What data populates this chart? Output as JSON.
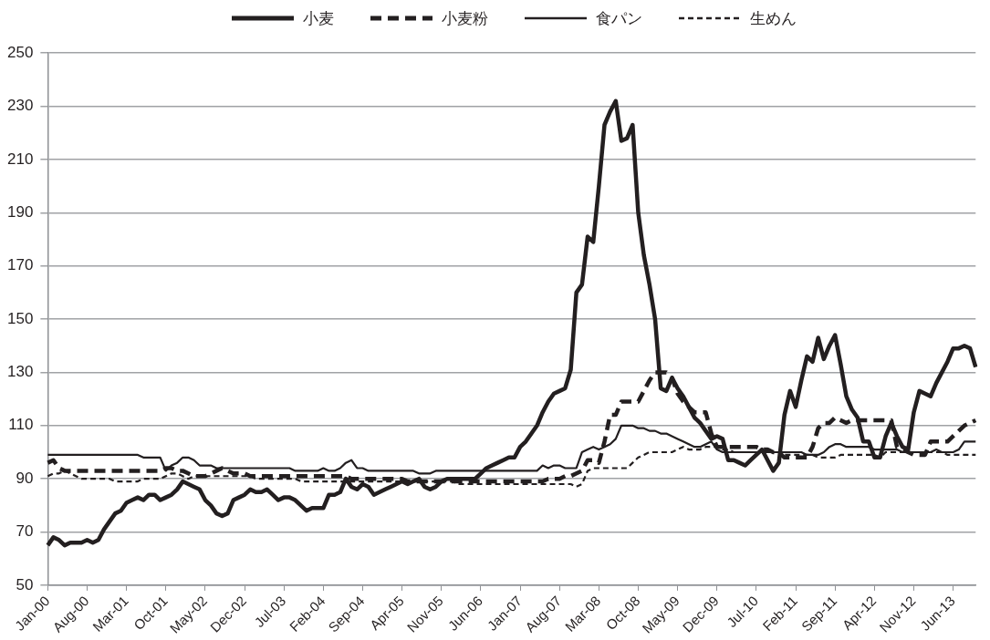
{
  "chart_data": {
    "type": "line",
    "categories": [
      "Jan-00",
      null,
      null,
      null,
      null,
      null,
      null,
      "Aug-00",
      null,
      null,
      null,
      null,
      null,
      null,
      "Mar-01",
      null,
      null,
      null,
      null,
      null,
      null,
      "Oct-01",
      null,
      null,
      null,
      null,
      null,
      null,
      "May-02",
      null,
      null,
      null,
      null,
      null,
      null,
      "Dec-02",
      null,
      null,
      null,
      null,
      null,
      null,
      "Jul-03",
      null,
      null,
      null,
      null,
      null,
      null,
      "Feb-04",
      null,
      null,
      null,
      null,
      null,
      null,
      "Sep-04",
      null,
      null,
      null,
      null,
      null,
      null,
      "Apr-05",
      null,
      null,
      null,
      null,
      null,
      null,
      "Nov-05",
      null,
      null,
      null,
      null,
      null,
      null,
      "Jun-06",
      null,
      null,
      null,
      null,
      null,
      null,
      "Jan-07",
      null,
      null,
      null,
      null,
      null,
      null,
      "Aug-07",
      null,
      null,
      null,
      null,
      null,
      null,
      "Mar-08",
      null,
      null,
      null,
      null,
      null,
      null,
      "Oct-08",
      null,
      null,
      null,
      null,
      null,
      null,
      "May-09",
      null,
      null,
      null,
      null,
      null,
      null,
      "Dec-09",
      null,
      null,
      null,
      null,
      null,
      null,
      "Jul-10",
      null,
      null,
      null,
      null,
      null,
      null,
      "Feb-11",
      null,
      null,
      null,
      null,
      null,
      null,
      "Sep-11",
      null,
      null,
      null,
      null,
      null,
      null,
      "Apr-12",
      null,
      null,
      null,
      null,
      null,
      null,
      "Nov-12",
      null,
      null,
      null,
      null,
      null,
      null,
      "Jun-13",
      null,
      null,
      null,
      null
    ],
    "series": [
      {
        "name": "小麦",
        "color": "#231f20",
        "line_style": "solid",
        "values": [
          65,
          68,
          67,
          65,
          66,
          66,
          66,
          67,
          66,
          67,
          71,
          74,
          77,
          78,
          81,
          82,
          83,
          82,
          84,
          84,
          82,
          83,
          84,
          86,
          89,
          88,
          87,
          86,
          82,
          80,
          77,
          76,
          77,
          82,
          83,
          84,
          86,
          85,
          85,
          86,
          84,
          82,
          83,
          83,
          82,
          80,
          78,
          79,
          79,
          79,
          84,
          84,
          85,
          90,
          87,
          86,
          88,
          87,
          84,
          85,
          86,
          87,
          88,
          89,
          88,
          89,
          90,
          87,
          86,
          87,
          89,
          90,
          90,
          90,
          90,
          90,
          90,
          92,
          94,
          95,
          96,
          97,
          98,
          98,
          102,
          104,
          107,
          110,
          115,
          119,
          122,
          123,
          124,
          131,
          160,
          163,
          181,
          179,
          200,
          223,
          228,
          232,
          217,
          218,
          223,
          190,
          174,
          163,
          150,
          124,
          123,
          128,
          124,
          121,
          117,
          113,
          111,
          108,
          105,
          106,
          105,
          97,
          97,
          96,
          95,
          97,
          99,
          101,
          97,
          93,
          96,
          114,
          123,
          117,
          127,
          136,
          134,
          143,
          135,
          140,
          144,
          133,
          121,
          116,
          113,
          104,
          104,
          98,
          98,
          106,
          111,
          106,
          102,
          101,
          115,
          123,
          122,
          121,
          126,
          130,
          134,
          139,
          139,
          140,
          139,
          132
        ]
      },
      {
        "name": "小麦粉",
        "color": "#231f20",
        "line_style": "dashed",
        "values": [
          96,
          97,
          94,
          93,
          93,
          93,
          93,
          93,
          93,
          93,
          93,
          93,
          93,
          93,
          93,
          93,
          93,
          93,
          93,
          93,
          93,
          94,
          94,
          93,
          93,
          92,
          91,
          91,
          91,
          92,
          93,
          94,
          93,
          92,
          92,
          92,
          91,
          91,
          91,
          91,
          91,
          91,
          91,
          91,
          91,
          91,
          91,
          91,
          91,
          91,
          91,
          91,
          91,
          91,
          90,
          90,
          90,
          90,
          90,
          90,
          90,
          90,
          90,
          90,
          89,
          89,
          89,
          89,
          89,
          89,
          89,
          89,
          89,
          89,
          89,
          89,
          89,
          89,
          89,
          89,
          89,
          89,
          89,
          89,
          89,
          89,
          89,
          89,
          89,
          90,
          90,
          90,
          91,
          91,
          92,
          93,
          97,
          97,
          96,
          104,
          114,
          114,
          119,
          119,
          119,
          119,
          123,
          127,
          130,
          130,
          130,
          128,
          122,
          119,
          117,
          115,
          115,
          115,
          107,
          102,
          102,
          102,
          102,
          102,
          102,
          102,
          102,
          101,
          101,
          100,
          100,
          98,
          98,
          98,
          98,
          98,
          102,
          109,
          111,
          111,
          113,
          112,
          111,
          112,
          112,
          112,
          112,
          112,
          112,
          112,
          112,
          102,
          101,
          100,
          99,
          99,
          99,
          104,
          104,
          104,
          104,
          106,
          108,
          110,
          111,
          112
        ]
      },
      {
        "name": "食パン",
        "color": "#231f20",
        "line_style": "solid",
        "values": [
          99,
          99,
          99,
          99,
          99,
          99,
          99,
          99,
          99,
          99,
          99,
          99,
          99,
          99,
          99,
          99,
          99,
          98,
          98,
          98,
          98,
          93,
          95,
          96,
          98,
          98,
          97,
          95,
          95,
          95,
          94,
          94,
          94,
          94,
          94,
          94,
          94,
          94,
          94,
          94,
          94,
          94,
          94,
          94,
          93,
          93,
          93,
          93,
          93,
          94,
          93,
          93,
          94,
          96,
          97,
          94,
          94,
          93,
          93,
          93,
          93,
          93,
          93,
          93,
          93,
          93,
          92,
          92,
          92,
          93,
          93,
          93,
          93,
          93,
          93,
          93,
          93,
          93,
          93,
          93,
          93,
          93,
          93,
          93,
          93,
          93,
          93,
          93,
          95,
          94,
          95,
          95,
          94,
          94,
          94,
          100,
          101,
          102,
          101,
          102,
          103,
          105,
          110,
          110,
          110,
          109,
          109,
          108,
          108,
          107,
          107,
          106,
          105,
          104,
          103,
          102,
          102,
          103,
          104,
          101,
          100,
          100,
          100,
          100,
          100,
          100,
          100,
          100,
          100,
          100,
          100,
          100,
          100,
          100,
          100,
          99,
          99,
          99,
          100,
          102,
          103,
          103,
          102,
          102,
          102,
          102,
          102,
          101,
          101,
          101,
          101,
          101,
          100,
          100,
          100,
          100,
          100,
          100,
          101,
          100,
          100,
          100,
          101,
          104,
          104,
          104
        ]
      },
      {
        "name": "生めん",
        "color": "#231f20",
        "line_style": "dotted",
        "values": [
          91,
          92,
          92,
          93,
          92,
          91,
          90,
          90,
          90,
          90,
          90,
          90,
          89,
          89,
          89,
          89,
          89,
          90,
          90,
          90,
          90,
          91,
          92,
          92,
          91,
          90,
          91,
          91,
          91,
          91,
          91,
          91,
          91,
          91,
          91,
          91,
          91,
          90,
          90,
          90,
          90,
          90,
          90,
          90,
          90,
          89,
          89,
          89,
          89,
          89,
          89,
          89,
          89,
          89,
          89,
          89,
          89,
          89,
          89,
          89,
          89,
          89,
          89,
          89,
          89,
          89,
          89,
          89,
          89,
          89,
          89,
          89,
          89,
          88,
          88,
          88,
          88,
          88,
          88,
          88,
          88,
          88,
          88,
          88,
          88,
          88,
          88,
          88,
          88,
          88,
          88,
          88,
          88,
          88,
          87,
          88,
          93,
          94,
          94,
          94,
          94,
          94,
          94,
          94,
          96,
          98,
          99,
          100,
          100,
          100,
          100,
          100,
          101,
          102,
          101,
          101,
          101,
          102,
          102,
          102,
          101,
          101,
          100,
          100,
          100,
          100,
          100,
          100,
          100,
          100,
          100,
          99,
          99,
          99,
          99,
          99,
          99,
          98,
          98,
          98,
          98,
          99,
          99,
          99,
          99,
          99,
          99,
          99,
          98,
          100,
          100,
          100,
          100,
          100,
          100,
          100,
          100,
          100,
          100,
          100,
          99,
          99,
          99,
          99,
          99,
          99
        ]
      }
    ],
    "ylim": [
      50,
      250
    ],
    "yticks": [
      50,
      70,
      90,
      110,
      130,
      150,
      170,
      190,
      210,
      230,
      250
    ],
    "grid": "y",
    "legend": "top",
    "marker": "none"
  }
}
